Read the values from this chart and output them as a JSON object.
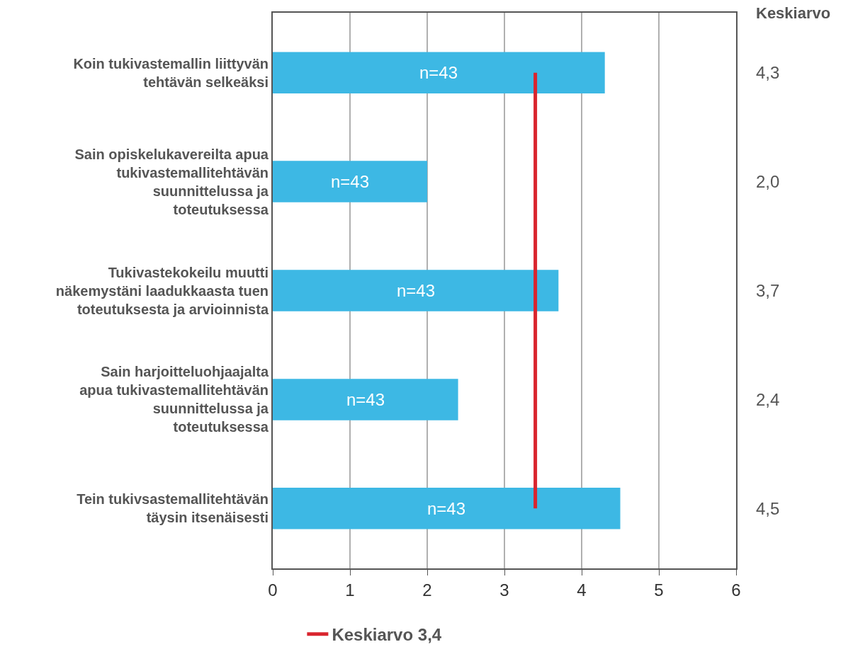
{
  "chart_data": {
    "type": "bar",
    "orientation": "horizontal",
    "categories": [
      "Koin tukivastemallin liittyvän tehtävän selkeäksi",
      "Sain opiskelukavereilta apua tukivastemallitehtävän suunnittelussa ja toteutuksessa",
      "Tukivastekokeilu muutti näkemystäni laadukkaasta tuen toteutuksesta ja arvioinnista",
      "Sain harjoitteluohjaajalta apua tukivastemallitehtävän suunnittelussa ja toteutuksessa",
      "Tein tukivsastemallitehtävän täysin itsenäisesti"
    ],
    "values": [
      4.3,
      2.0,
      3.7,
      2.4,
      4.5
    ],
    "value_labels": [
      "4,3",
      "2,0",
      "3,7",
      "2,4",
      "4,5"
    ],
    "color": "#3db8e4",
    "xlim": [
      0,
      6
    ],
    "xticks": [
      0,
      1,
      2,
      3,
      4,
      5,
      6
    ],
    "grid": "x",
    "ref_lines": [
      {
        "axis": "x",
        "value": 3.4,
        "label": "Keskiarvo 3,4",
        "color": "#d9252e"
      }
    ],
    "annotations": [
      "Keskiarvo",
      "n=43",
      "n=43",
      "n=43",
      "n=43",
      "n=43"
    ],
    "legend": "bottom"
  }
}
